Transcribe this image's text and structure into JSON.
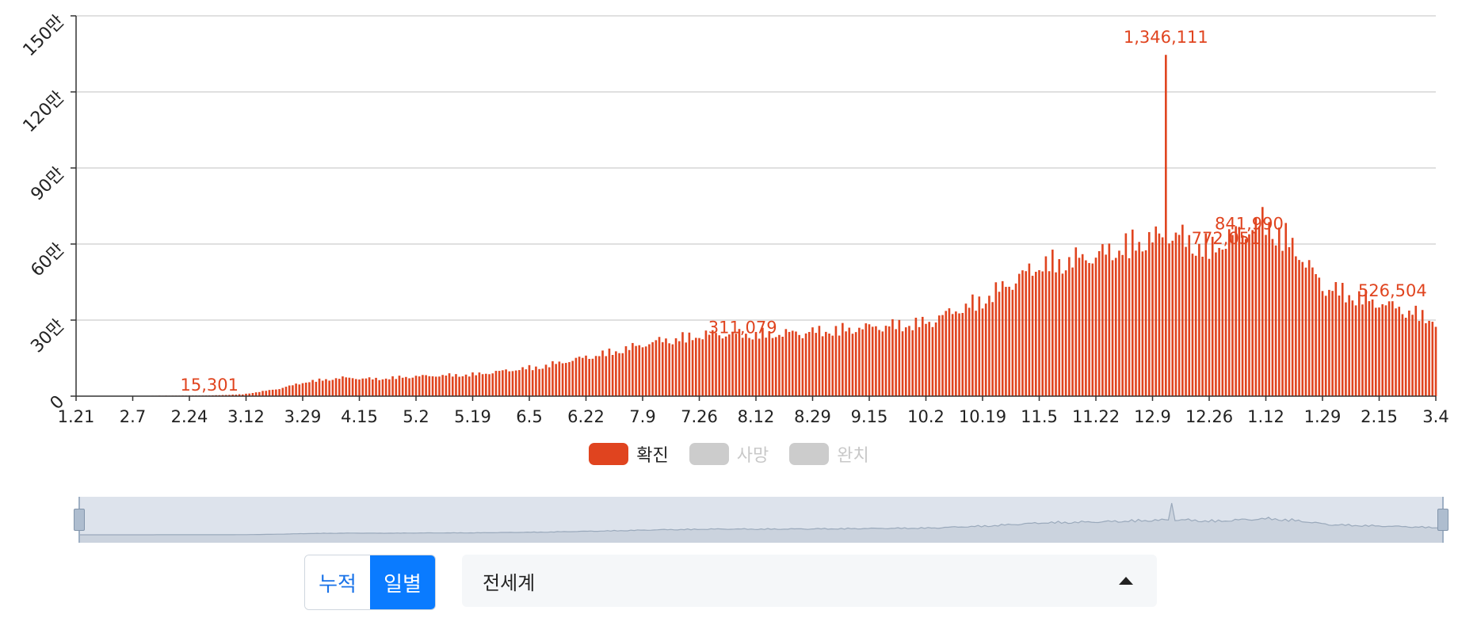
{
  "chart_data": {
    "type": "bar",
    "title": "",
    "xlabel": "",
    "ylabel": "",
    "ylim": [
      0,
      1500000
    ],
    "y_ticks": [
      {
        "value": 0,
        "label": "0"
      },
      {
        "value": 300000,
        "label": "30만"
      },
      {
        "value": 600000,
        "label": "60만"
      },
      {
        "value": 900000,
        "label": "90만"
      },
      {
        "value": 1200000,
        "label": "120만"
      },
      {
        "value": 1500000,
        "label": "150만"
      }
    ],
    "x_tick_labels": [
      "1.21",
      "2.7",
      "2.24",
      "3.12",
      "3.29",
      "4.15",
      "5.2",
      "5.19",
      "6.5",
      "6.22",
      "7.9",
      "7.26",
      "8.12",
      "8.29",
      "9.15",
      "10.2",
      "10.19",
      "11.5",
      "11.22",
      "12.9",
      "12.26",
      "1.12",
      "1.29",
      "2.15",
      "3.4"
    ],
    "x_tick_day_offsets": [
      0,
      17,
      34,
      51,
      68,
      85,
      102,
      119,
      136,
      153,
      170,
      187,
      204,
      221,
      238,
      255,
      272,
      289,
      306,
      323,
      340,
      357,
      374,
      391,
      408
    ],
    "daily_confirmed_anchors": [
      {
        "day": 0,
        "value": 300
      },
      {
        "day": 25,
        "value": 2000
      },
      {
        "day": 40,
        "value": 3000
      },
      {
        "day": 50,
        "value": 8000
      },
      {
        "day": 60,
        "value": 30000
      },
      {
        "day": 70,
        "value": 65000
      },
      {
        "day": 80,
        "value": 80000
      },
      {
        "day": 90,
        "value": 75000
      },
      {
        "day": 100,
        "value": 85000
      },
      {
        "day": 120,
        "value": 95000
      },
      {
        "day": 140,
        "value": 130000
      },
      {
        "day": 160,
        "value": 190000
      },
      {
        "day": 175,
        "value": 240000
      },
      {
        "day": 190,
        "value": 270000
      },
      {
        "day": 210,
        "value": 270000
      },
      {
        "day": 230,
        "value": 290000
      },
      {
        "day": 255,
        "value": 320000
      },
      {
        "day": 272,
        "value": 420000
      },
      {
        "day": 289,
        "value": 570000
      },
      {
        "day": 306,
        "value": 610000
      },
      {
        "day": 320,
        "value": 680000
      },
      {
        "day": 330,
        "value": 700000
      },
      {
        "day": 340,
        "value": 640000
      },
      {
        "day": 350,
        "value": 720000
      },
      {
        "day": 357,
        "value": 760000
      },
      {
        "day": 365,
        "value": 660000
      },
      {
        "day": 374,
        "value": 480000
      },
      {
        "day": 390,
        "value": 410000
      },
      {
        "day": 400,
        "value": 370000
      },
      {
        "day": 408,
        "value": 330000
      }
    ],
    "peak": {
      "day": 327,
      "value": 1346111,
      "label": "1,346,111"
    },
    "visible_value_labels": [
      "15,301",
      "311,079",
      "772,051",
      "841,990",
      "526,504"
    ],
    "series": [
      {
        "name": "확진",
        "color": "#e0441f",
        "active": true
      },
      {
        "name": "사망",
        "color": "#cccccc",
        "active": false
      },
      {
        "name": "완치",
        "color": "#cccccc",
        "active": false
      }
    ],
    "grid": true,
    "legend_position": "bottom-center"
  },
  "controls": {
    "cumulative_label": "누적",
    "daily_label": "일별",
    "region_selected": "전세계"
  }
}
